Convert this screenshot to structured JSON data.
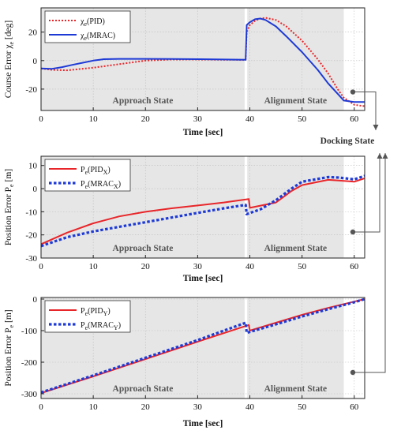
{
  "chart_data": [
    {
      "type": "line",
      "ylabel": "Course Error  χe  [deg]",
      "xlabel": "Time  [sec]",
      "xlim": [
        0,
        62
      ],
      "ylim": [
        -35,
        37
      ],
      "xticks": [
        0,
        10,
        20,
        30,
        40,
        50,
        60
      ],
      "yticks": [
        -20,
        0,
        20
      ],
      "grid": true,
      "legend_position": "top-left",
      "regions": [
        {
          "label": "Approach State",
          "x": [
            0,
            39
          ]
        },
        {
          "label": "Alignment State",
          "x": [
            39.5,
            58
          ]
        }
      ],
      "series": [
        {
          "name": "χe(PID)",
          "color": "#e8262a",
          "style": "dotted",
          "x": [
            0,
            2,
            5,
            10,
            15,
            20,
            25,
            30,
            35,
            39.2,
            39.4,
            40,
            41,
            42,
            43,
            45,
            47,
            50,
            53,
            55,
            57,
            58,
            60,
            62
          ],
          "y": [
            -5.5,
            -6.5,
            -6.8,
            -5,
            -2.5,
            0,
            0.8,
            0.8,
            0.6,
            0.5,
            20,
            25,
            28,
            29.5,
            30,
            28.5,
            24,
            14,
            1,
            -9,
            -21,
            -26,
            -31,
            -32
          ]
        },
        {
          "name": "χe(MRAC)",
          "color": "#1e3ad6",
          "style": "solid",
          "x": [
            0,
            2,
            4,
            6,
            8,
            10,
            12,
            15,
            20,
            25,
            30,
            35,
            39.2,
            39.4,
            40,
            41,
            42,
            43,
            45,
            47,
            50,
            53,
            55,
            57,
            58,
            60,
            62
          ],
          "y": [
            -5.5,
            -5.8,
            -4.6,
            -3,
            -1.5,
            0,
            1,
            1.2,
            1.2,
            1.1,
            1,
            0.8,
            0.6,
            25,
            27,
            29,
            29.5,
            28.5,
            24,
            17,
            6,
            -6.5,
            -16,
            -24,
            -28,
            -29,
            -29
          ]
        }
      ]
    },
    {
      "type": "line",
      "ylabel": "Position Error  Pe  [m]",
      "xlabel": "Time  [sec]",
      "xlim": [
        0,
        62
      ],
      "ylim": [
        -30,
        14
      ],
      "xticks": [
        0,
        10,
        20,
        30,
        40,
        50,
        60
      ],
      "yticks": [
        -30,
        -20,
        -10,
        0,
        10
      ],
      "grid": true,
      "legend_position": "top-left",
      "regions": [
        {
          "label": "Approach State",
          "x": [
            0,
            39
          ]
        },
        {
          "label": "Alignment State",
          "x": [
            39.5,
            58
          ]
        }
      ],
      "series": [
        {
          "name": "Pe(PIDX)",
          "color": "#e8262a",
          "style": "solid",
          "x": [
            0,
            5,
            10,
            15,
            20,
            25,
            30,
            35,
            39.8,
            40,
            45,
            48,
            50,
            55,
            57,
            60,
            62
          ],
          "y": [
            -24,
            -19,
            -15,
            -12,
            -10,
            -8.5,
            -7.3,
            -6,
            -4.5,
            -8.3,
            -6,
            -1,
            1.5,
            3.8,
            3.5,
            3,
            4.5
          ]
        },
        {
          "name": "Pe(MRACX)",
          "color": "#1e3ad6",
          "style": "dotted",
          "x": [
            0,
            5,
            10,
            15,
            20,
            25,
            30,
            35,
            39.2,
            39.4,
            42,
            45,
            48,
            50,
            55,
            57,
            60,
            62
          ],
          "y": [
            -24.8,
            -21,
            -18.5,
            -16.5,
            -14.5,
            -12.5,
            -10.5,
            -8.5,
            -7,
            -11,
            -9,
            -5,
            0,
            3,
            5,
            4.8,
            4,
            5.5
          ]
        }
      ]
    },
    {
      "type": "line",
      "ylabel": "Position Error  Pe  [m]",
      "xlabel": "Time  [sec]",
      "xlim": [
        0,
        62
      ],
      "ylim": [
        -315,
        5
      ],
      "xticks": [
        0,
        10,
        20,
        30,
        40,
        50,
        60
      ],
      "yticks": [
        -300,
        -200,
        -100,
        0
      ],
      "grid": true,
      "legend_position": "top-left",
      "regions": [
        {
          "label": "Approach State",
          "x": [
            0,
            39
          ]
        },
        {
          "label": "Alignment State",
          "x": [
            39.5,
            58
          ]
        }
      ],
      "series": [
        {
          "name": "Pe(PIDY)",
          "color": "#e8262a",
          "style": "solid",
          "x": [
            0,
            10,
            20,
            30,
            39.8,
            40,
            45,
            50,
            55,
            60,
            62
          ],
          "y": [
            -298,
            -245,
            -190,
            -135,
            -82,
            -100,
            -75,
            -50,
            -28,
            -8,
            0
          ]
        },
        {
          "name": "Pe(MRACY)",
          "color": "#1e3ad6",
          "style": "dotted",
          "x": [
            0,
            10,
            20,
            30,
            39.2,
            39.4,
            45,
            50,
            55,
            60,
            62
          ],
          "y": [
            -296,
            -242,
            -186,
            -130,
            -75,
            -107,
            -80,
            -55,
            -32,
            -10,
            0
          ]
        }
      ]
    }
  ],
  "annotation": {
    "label": "Docking State"
  }
}
